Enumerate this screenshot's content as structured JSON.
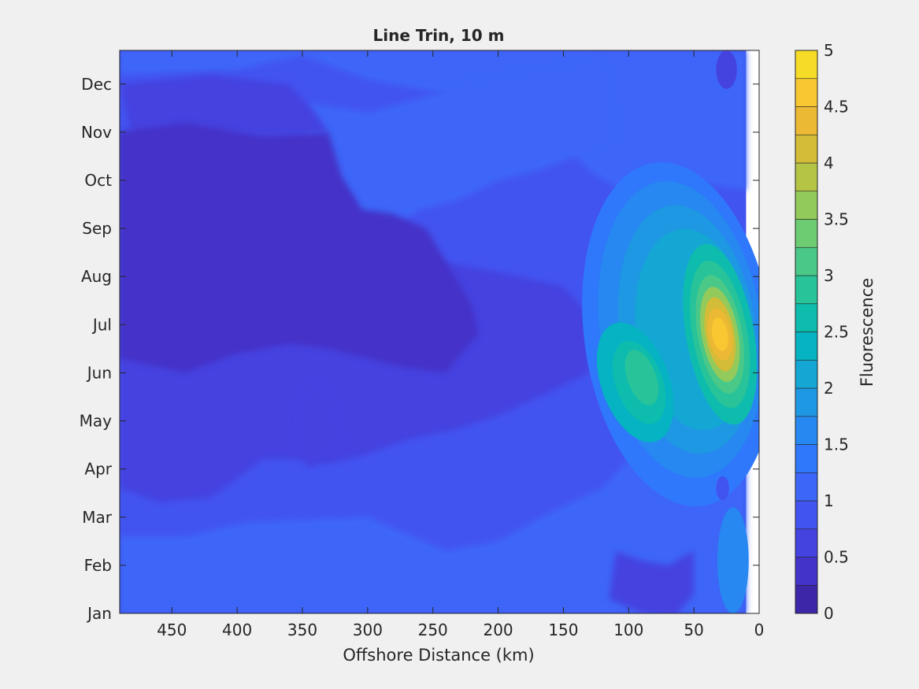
{
  "chart_data": {
    "type": "contour",
    "title": "Line Trin, 10 m",
    "xlabel": "Offshore Distance (km)",
    "ylabel": "",
    "xlim": [
      490,
      0
    ],
    "ylim": [
      1,
      12.7
    ],
    "x_ticks": [
      450,
      400,
      350,
      300,
      250,
      200,
      150,
      100,
      50,
      0
    ],
    "y_ticks": [
      {
        "value": 1,
        "label": "Jan"
      },
      {
        "value": 2,
        "label": "Feb"
      },
      {
        "value": 3,
        "label": "Mar"
      },
      {
        "value": 4,
        "label": "Apr"
      },
      {
        "value": 5,
        "label": "May"
      },
      {
        "value": 6,
        "label": "Jun"
      },
      {
        "value": 7,
        "label": "Jul"
      },
      {
        "value": 8,
        "label": "Aug"
      },
      {
        "value": 9,
        "label": "Sep"
      },
      {
        "value": 10,
        "label": "Oct"
      },
      {
        "value": 11,
        "label": "Nov"
      },
      {
        "value": 12,
        "label": "Dec"
      }
    ],
    "data_x_extent_km": [
      490,
      10
    ],
    "grid": false,
    "colorbar": {
      "label": "Fluorescence",
      "min": 0,
      "max": 5,
      "step": 0.25,
      "ticks": [
        0,
        0.5,
        1,
        1.5,
        2,
        2.5,
        3,
        3.5,
        4,
        4.5,
        5
      ],
      "tick_labels": [
        "0",
        "0.5",
        "1",
        "1.5",
        "2",
        "2.5",
        "3",
        "3.5",
        "4",
        "4.5",
        "5"
      ],
      "colors": [
        "#3d26a8",
        "#4433c8",
        "#4543e0",
        "#4254f0",
        "#3c66f8",
        "#2f77fb",
        "#2688f0",
        "#1e98e2",
        "#14a7d3",
        "#05b3c2",
        "#0ebcae",
        "#28c399",
        "#4ac887",
        "#6dcc72",
        "#93ca5c",
        "#b5c445",
        "#d3bc37",
        "#ecb935",
        "#f8c731",
        "#f6dc27"
      ]
    },
    "features": [
      {
        "type": "background",
        "value": 0.9
      },
      {
        "type": "low_region",
        "value": 0.3,
        "x_range_km": [
          490,
          220
        ],
        "months": [
          "Jun",
          "Nov"
        ]
      },
      {
        "type": "high_region",
        "value": 4.6,
        "x_center_km": 30,
        "month_center": "Jul"
      },
      {
        "type": "high_region",
        "value": 2.9,
        "x_center_km": 95,
        "month_center": "Jun"
      }
    ]
  }
}
